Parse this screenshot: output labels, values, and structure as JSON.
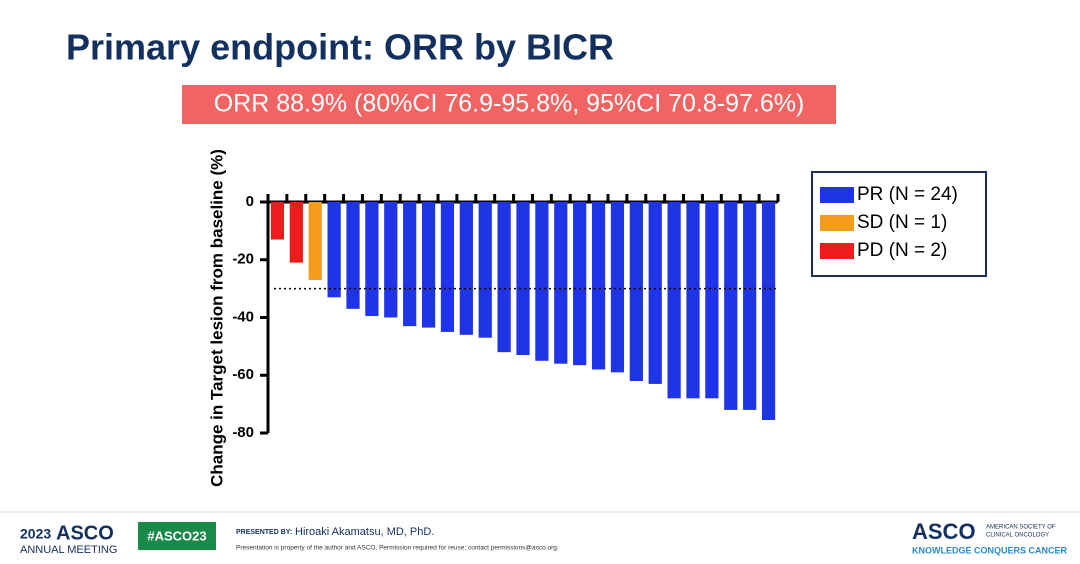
{
  "slide": {
    "title": "Primary endpoint: ORR by BICR",
    "banner": "ORR 88.9% (80%CI 76.9-95.8%, 95%CI 70.8-97.6%)",
    "footer": {
      "meeting_year": "2023",
      "meeting_name": "ASCO",
      "meeting_sub": "ANNUAL MEETING",
      "hashtag": "#ASCO23",
      "presented_by_label": "PRESENTED BY:",
      "presenter": "Hiroaki Akamatsu, MD, PhD.",
      "notice": "Presentation is property of the author and ASCO. Permission required for reuse; contact permissions@asco.org.",
      "org_logo": "ASCO",
      "org_name_1": "AMERICAN SOCIETY OF",
      "org_name_2": "CLINICAL ONCOLOGY",
      "tagline": "KNOWLEDGE CONQUERS CANCER"
    }
  },
  "chart_data": {
    "type": "bar",
    "y_label": "Change in Target lesion from baseline (%)",
    "categories": [
      null,
      null,
      null,
      null,
      null,
      null,
      null,
      null,
      null,
      null,
      null,
      null,
      null,
      null,
      null,
      null,
      null,
      null,
      null,
      null,
      null,
      null,
      null,
      null,
      null,
      null,
      null
    ],
    "series": [
      {
        "name": "PR (N = 24)",
        "color": "#1f34e6",
        "values": [
          null,
          null,
          null,
          -33,
          -37,
          -39.5,
          -40,
          -43,
          -43.5,
          -45,
          -46,
          -47,
          -52,
          -53,
          -55,
          -56,
          -56.5,
          -58,
          -59,
          -62,
          -63,
          -68,
          -68,
          -68,
          -72,
          -72,
          -75.5
        ]
      },
      {
        "name": "SD (N = 1)",
        "color": "#f59c1a",
        "values": [
          null,
          null,
          -27,
          null,
          null,
          null,
          null,
          null,
          null,
          null,
          null,
          null,
          null,
          null,
          null,
          null,
          null,
          null,
          null,
          null,
          null,
          null,
          null,
          null,
          null,
          null,
          null
        ]
      },
      {
        "name": "PD (N = 2)",
        "color": "#ee1c1c",
        "values": [
          -13,
          -21,
          null,
          null,
          null,
          null,
          null,
          null,
          null,
          null,
          null,
          null,
          null,
          null,
          null,
          null,
          null,
          null,
          null,
          null,
          null,
          null,
          null,
          null,
          null,
          null,
          null
        ]
      }
    ],
    "reference_line": -30,
    "ylim": [
      -80,
      0
    ],
    "yticks": [
      0,
      -20,
      -40,
      -60,
      -80
    ],
    "legend": "right"
  }
}
